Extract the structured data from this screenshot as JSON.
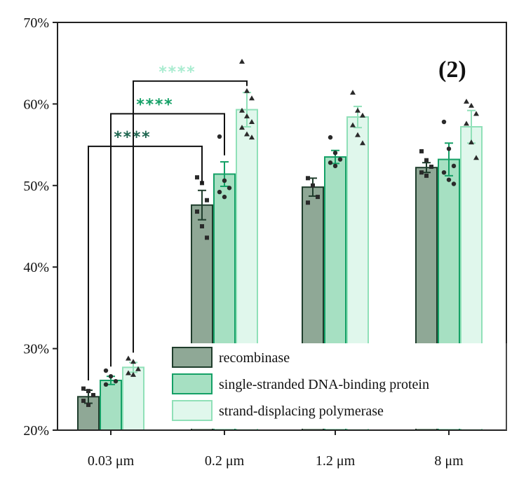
{
  "chart_data": {
    "type": "bar",
    "title": "",
    "panel_label": "(2)",
    "xlabel": "",
    "ylabel": "",
    "categories": [
      "0.03 μm",
      "0.2 μm",
      "1.2 μm",
      "8 μm"
    ],
    "ylim": [
      20,
      70
    ],
    "y_ticks": [
      20,
      30,
      40,
      50,
      60,
      70
    ],
    "y_tick_labels": [
      "20%",
      "30%",
      "40%",
      "50%",
      "60%",
      "70%"
    ],
    "grid": false,
    "legend_position": "bottom-right",
    "series": [
      {
        "name": "recombinase",
        "color": "#8fa896",
        "edge": "#1f3d2c",
        "values": [
          24.1,
          47.6,
          49.8,
          52.2
        ],
        "errors": [
          0.8,
          1.8,
          1.1,
          0.6
        ],
        "marker": "square",
        "points": [
          [
            25.1,
            24.8,
            24.3,
            23.6,
            23.1
          ],
          [
            51.0,
            50.3,
            48.2,
            46.8,
            45.0,
            43.6
          ],
          [
            50.9,
            50.0,
            48.6,
            47.9
          ],
          [
            54.2,
            53.1,
            52.3,
            51.6,
            51.2
          ]
        ]
      },
      {
        "name": "single-stranded DNA-binding protein",
        "color": "#a6e0c2",
        "edge": "#14a066",
        "values": [
          26.1,
          51.4,
          53.5,
          53.2
        ],
        "errors": [
          0.5,
          1.5,
          0.8,
          2.0
        ],
        "marker": "circle",
        "points": [
          [
            27.3,
            26.6,
            26.0,
            25.6
          ],
          [
            56.0,
            50.6,
            49.7,
            49.2,
            48.6
          ],
          [
            55.9,
            54.0,
            53.2,
            52.8,
            52.4
          ],
          [
            57.8,
            54.5,
            52.4,
            51.6,
            50.7,
            50.2
          ]
        ]
      },
      {
        "name": "strand-displacing polymerase",
        "color": "#e0f7ec",
        "edge": "#90e0b8",
        "values": [
          27.7,
          59.3,
          58.4,
          57.2
        ],
        "errors": [
          0.6,
          2.1,
          1.3,
          2.0
        ],
        "marker": "triangle",
        "points": [
          [
            28.8,
            28.4,
            27.5,
            27.0,
            26.8
          ],
          [
            65.2,
            61.6,
            60.7,
            59.2,
            58.5,
            57.8,
            57.1,
            56.3,
            55.9
          ],
          [
            61.4,
            59.2,
            58.6,
            57.4,
            56.2,
            55.2
          ],
          [
            60.3,
            59.8,
            58.8,
            57.6,
            55.3,
            53.4
          ]
        ]
      }
    ],
    "significance": [
      {
        "label": "****",
        "color": "#1f6650",
        "from_category": 0,
        "from_series": 0,
        "to_category": 1,
        "to_series": 0,
        "level": 54.8
      },
      {
        "label": "****",
        "color": "#14a066",
        "from_category": 0,
        "from_series": 1,
        "to_category": 1,
        "to_series": 1,
        "level": 58.8
      },
      {
        "label": "****",
        "color": "#a9ecd0",
        "from_category": 0,
        "from_series": 2,
        "to_category": 1,
        "to_series": 2,
        "level": 62.8
      }
    ]
  }
}
